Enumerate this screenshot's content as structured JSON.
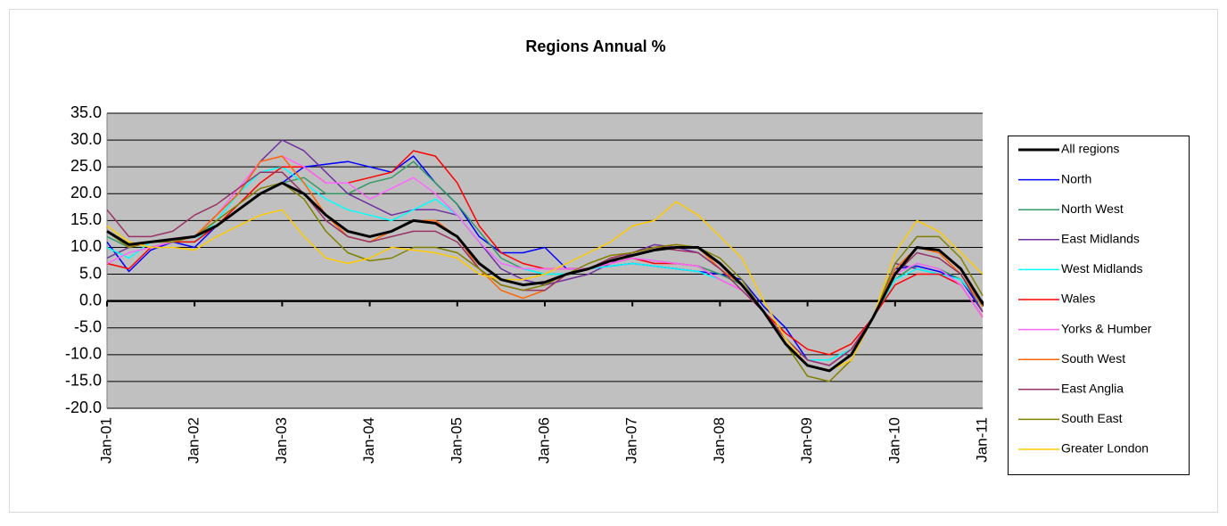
{
  "chart_data": {
    "type": "line",
    "title": "Regions Annual %",
    "categories": [
      "Jan-01",
      null,
      null,
      null,
      "Jan-02",
      null,
      null,
      null,
      "Jan-03",
      null,
      null,
      null,
      "Jan-04",
      null,
      null,
      null,
      "Jan-05",
      null,
      null,
      null,
      "Jan-06",
      null,
      null,
      null,
      "Jan-07",
      null,
      null,
      null,
      "Jan-08",
      null,
      null,
      null,
      "Jan-09",
      null,
      null,
      null,
      "Jan-10",
      null,
      null,
      null,
      "Jan-11"
    ],
    "ylim": [
      -20,
      35
    ],
    "yticks": [
      {
        "value": 35,
        "label": "35.0"
      },
      {
        "value": 30,
        "label": "30.0"
      },
      {
        "value": 25,
        "label": "25.0"
      },
      {
        "value": 20,
        "label": "20.0"
      },
      {
        "value": 15,
        "label": "15.0"
      },
      {
        "value": 10,
        "label": "10.0"
      },
      {
        "value": 5,
        "label": "5.0"
      },
      {
        "value": 0,
        "label": "0.0"
      },
      {
        "value": -5,
        "label": "-5.0"
      },
      {
        "value": -10,
        "label": "-10.0"
      },
      {
        "value": -15,
        "label": "-15.0"
      },
      {
        "value": -20,
        "label": "-20.0"
      }
    ],
    "grid": true,
    "legend": "right",
    "series": [
      {
        "name": "All regions",
        "color": "#000000",
        "values": [
          13,
          10.5,
          11,
          11.5,
          12,
          14,
          17,
          20,
          22,
          20,
          16,
          13,
          12,
          13,
          15,
          14.5,
          12,
          7,
          4,
          3,
          3.5,
          5,
          6,
          7.5,
          8.5,
          9.5,
          10,
          10,
          7,
          3,
          -2,
          -8,
          -12,
          -13,
          -10,
          -3,
          5,
          10,
          9.5,
          6,
          -0.5
        ]
      },
      {
        "name": "North",
        "color": "#0000ff",
        "values": [
          11,
          5.5,
          9.5,
          11,
          10,
          14,
          17,
          20,
          22,
          25,
          25.5,
          26,
          25,
          24,
          27,
          22,
          18,
          12,
          9,
          9,
          10,
          6,
          6,
          6.5,
          7,
          6.5,
          6,
          5.5,
          5,
          4,
          -1,
          -5,
          -11,
          -12,
          -9,
          -3,
          6,
          6.5,
          5.5,
          4,
          -2
        ]
      },
      {
        "name": "North West",
        "color": "#339966",
        "values": [
          12,
          10,
          11,
          11,
          11,
          14,
          17,
          20,
          22,
          23,
          20,
          20,
          22,
          23,
          26,
          22,
          18,
          13,
          8,
          6,
          5,
          5,
          6,
          7,
          8,
          7.5,
          7,
          6.5,
          5,
          3,
          -2,
          -7,
          -11,
          -11,
          -9,
          -3,
          4,
          7,
          6,
          4,
          -1
        ]
      },
      {
        "name": "East Midlands",
        "color": "#7030a0",
        "values": [
          8,
          10,
          11,
          11,
          12,
          16,
          20,
          26,
          30,
          28,
          24,
          20,
          18,
          16,
          17,
          17,
          16,
          11,
          6,
          4,
          3,
          4,
          5,
          7,
          9,
          10.5,
          10,
          9,
          6,
          3,
          -2,
          -7,
          -11,
          -12,
          -9,
          -3,
          7,
          6,
          5,
          3,
          -3
        ]
      },
      {
        "name": "West Midlands",
        "color": "#00ffff",
        "values": [
          10,
          8,
          11,
          11,
          11,
          15,
          20,
          24,
          25,
          22,
          19,
          17,
          16,
          15,
          17,
          19,
          16,
          11,
          7,
          6,
          5,
          5,
          6,
          6.5,
          7,
          6.5,
          6,
          5.5,
          4,
          2,
          -2,
          -7,
          -11,
          -11,
          -9,
          -3,
          4,
          6,
          5,
          4,
          -1
        ]
      },
      {
        "name": "Wales",
        "color": "#ff0000",
        "values": [
          7,
          6,
          10,
          11,
          11,
          14,
          18,
          22,
          25,
          25,
          22,
          22,
          23,
          24,
          28,
          27,
          22,
          14,
          9,
          7,
          6,
          6,
          6,
          7,
          8,
          7,
          7,
          6.5,
          4,
          2,
          -2,
          -6,
          -9,
          -10,
          -8,
          -3,
          3,
          5,
          5,
          3,
          -3
        ]
      },
      {
        "name": "Yorks & Humber",
        "color": "#ff66ff",
        "values": [
          7,
          9,
          10,
          11,
          12,
          16,
          21,
          26,
          27,
          25,
          22,
          22,
          19,
          21,
          23,
          20,
          16,
          11,
          7,
          6,
          6,
          6,
          6,
          7,
          8,
          7.5,
          7,
          6.5,
          4,
          2,
          -2,
          -7,
          -11,
          -12,
          -9,
          -3,
          5,
          7,
          6,
          3,
          -3
        ]
      },
      {
        "name": "South West",
        "color": "#ff6600",
        "values": [
          13,
          10,
          11,
          11,
          12,
          16,
          20,
          26,
          27,
          22,
          16,
          12,
          11,
          13,
          15,
          15,
          12,
          6,
          2,
          0.5,
          2,
          5,
          6,
          8,
          9,
          10,
          10.5,
          10,
          6,
          3,
          -2,
          -8,
          -12,
          -13,
          -10,
          -3,
          6,
          10,
          9,
          5,
          -1
        ]
      },
      {
        "name": "East Anglia",
        "color": "#993366",
        "values": [
          17,
          12,
          12,
          13,
          16,
          18,
          21,
          24,
          24,
          20,
          15,
          12,
          11,
          12,
          13,
          13,
          11,
          6,
          3,
          2,
          2,
          5,
          6,
          8,
          9,
          10,
          9.5,
          9,
          6,
          2,
          -2,
          -7,
          -11,
          -12,
          -9,
          -3,
          5,
          9,
          8,
          5,
          -2
        ]
      },
      {
        "name": "South East",
        "color": "#808000",
        "values": [
          13,
          10,
          11,
          11,
          12,
          15,
          18,
          21,
          22,
          19,
          13,
          9,
          7.5,
          8,
          10,
          10,
          9,
          6,
          3,
          2,
          3,
          5,
          7,
          8.5,
          9,
          10,
          10.5,
          10,
          8,
          4,
          -2,
          -8,
          -14,
          -15,
          -11,
          -3,
          7,
          12,
          12,
          8,
          1
        ]
      },
      {
        "name": "Greater London",
        "color": "#ffcc00",
        "values": [
          14,
          11,
          10,
          10,
          9.5,
          12,
          14,
          16,
          17,
          12,
          8,
          7,
          8,
          10,
          9.5,
          9,
          8,
          5,
          4,
          4,
          5,
          7,
          9,
          11,
          14,
          15,
          18.5,
          16,
          12,
          8,
          0,
          -7,
          -12,
          -13,
          -11,
          -3,
          9,
          15,
          13,
          9,
          5
        ]
      }
    ]
  }
}
